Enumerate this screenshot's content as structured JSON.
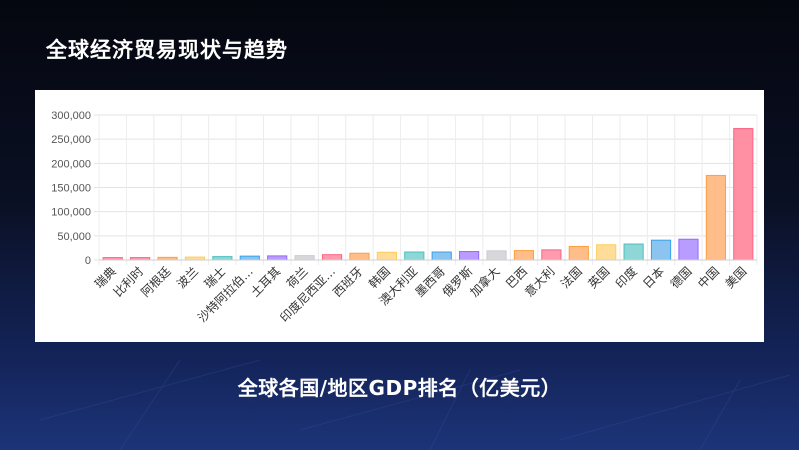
{
  "slide": {
    "title": "全球经济贸易现状与趋势",
    "caption": "全球各国/地区GDP排名（亿美元）"
  },
  "chart_data": {
    "type": "bar",
    "title": "",
    "xlabel": "",
    "ylabel": "",
    "ylim": [
      0,
      300000
    ],
    "yticks": [
      0,
      50000,
      100000,
      150000,
      200000,
      250000,
      300000
    ],
    "grid": true,
    "legend": "none",
    "categories": [
      "瑞典",
      "比利时",
      "阿根廷",
      "波兰",
      "瑞士",
      "沙特阿拉伯…",
      "土耳其",
      "荷兰",
      "印度尼西亚…",
      "西班牙",
      "韩国",
      "澳大利亚",
      "墨西哥",
      "俄罗斯",
      "加拿大",
      "巴西",
      "意大利",
      "法国",
      "英国",
      "印度",
      "日本",
      "德国",
      "中国",
      "美国"
    ],
    "values": [
      5000,
      5000,
      5500,
      6000,
      7000,
      8000,
      8500,
      9000,
      11000,
      14000,
      16000,
      16500,
      16500,
      17500,
      19000,
      19500,
      21000,
      28000,
      31500,
      33000,
      41000,
      43000,
      175000,
      272000
    ],
    "colors": [
      "#ff9aaf",
      "#ff9aaf",
      "#ffbd8a",
      "#ffdd99",
      "#8fd6d6",
      "#8cc4f0",
      "#b99cff",
      "#d7d8dc",
      "#ff9aaf",
      "#ffbd8a",
      "#ffdd99",
      "#8fd6d6",
      "#8cc4f0",
      "#b99cff",
      "#d7d8dc",
      "#ffbd8a",
      "#ff9aaf",
      "#ffbd8a",
      "#ffdd99",
      "#8fd6d6",
      "#8cc4f0",
      "#b99cff",
      "#ffbd8a",
      "#ff90a4"
    ],
    "border_colors": [
      "#ff6384",
      "#ff6384",
      "#ff9f40",
      "#ffcd56",
      "#4bc0c0",
      "#36a2eb",
      "#9966ff",
      "#c9cbcf",
      "#ff6384",
      "#ff9f40",
      "#ffcd56",
      "#4bc0c0",
      "#36a2eb",
      "#9966ff",
      "#c9cbcf",
      "#ff9f40",
      "#ff6384",
      "#ff9f40",
      "#ffcd56",
      "#4bc0c0",
      "#36a2eb",
      "#9966ff",
      "#ff9f40",
      "#ff6384"
    ]
  }
}
